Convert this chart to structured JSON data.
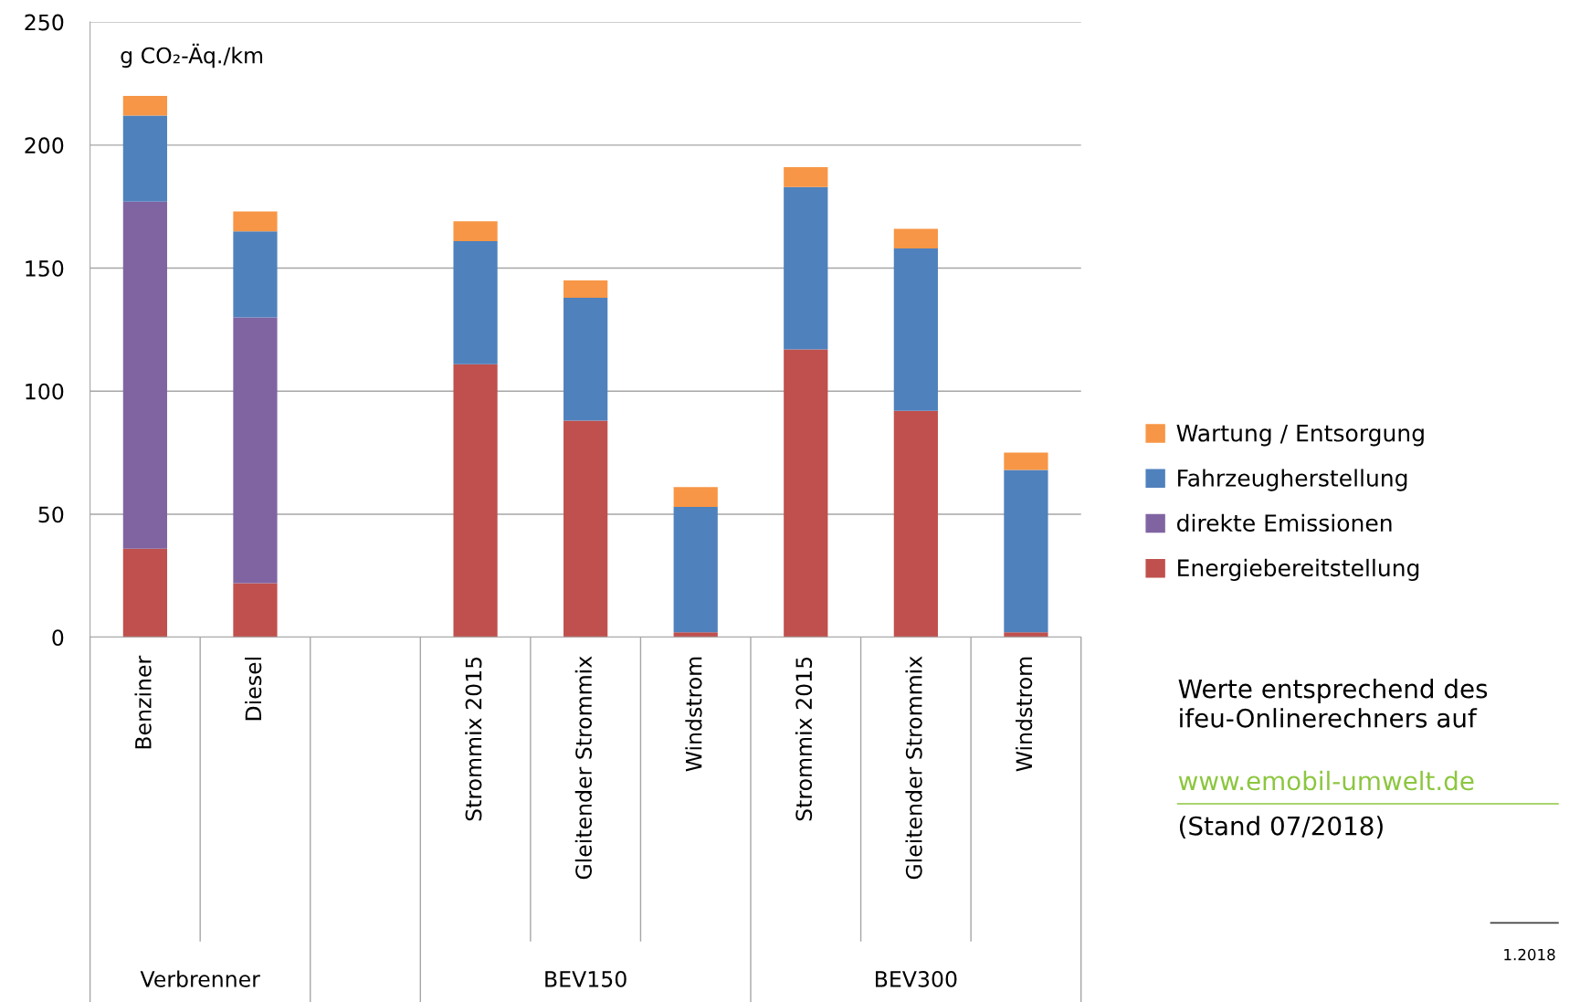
{
  "chart_data": {
    "type": "bar",
    "stacked": true,
    "ylabel": "g CO₂-Äq./km",
    "categories": [
      "Benziner",
      "Diesel",
      null,
      "Strommix 2015",
      "Gleitender Strommix",
      "Windstrom",
      "Strommix 2015",
      "Gleitender Strommix",
      "Windstrom"
    ],
    "series": [
      {
        "name": "Energiebereitstellung",
        "color": "#c0504d",
        "values": [
          36,
          22,
          null,
          111,
          88,
          2,
          117,
          92,
          2
        ]
      },
      {
        "name": "direkte Emissionen",
        "color": "#8064a2",
        "values": [
          141,
          108,
          null,
          null,
          null,
          null,
          null,
          null,
          null
        ]
      },
      {
        "name": "Fahrzeugherstellung",
        "color": "#4f81bd",
        "values": [
          35,
          35,
          null,
          50,
          50,
          51,
          66,
          66,
          66
        ]
      },
      {
        "name": "Wartung / Entsorgung",
        "color": "#f79646",
        "values": [
          8,
          8,
          null,
          8,
          7,
          8,
          8,
          8,
          7
        ]
      }
    ],
    "ylim": [
      0,
      250
    ],
    "yticks": [
      0,
      50,
      100,
      150,
      200,
      250
    ],
    "grid": "y",
    "legend": "right",
    "annotations": [
      "Verbrenner",
      "BEV150",
      "BEV300",
      "Werte entsprechend des\nifeu-Onlinerechners auf",
      "www.emobil-umwelt.de",
      "(Stand 07/2018)",
      "1.2018"
    ]
  }
}
